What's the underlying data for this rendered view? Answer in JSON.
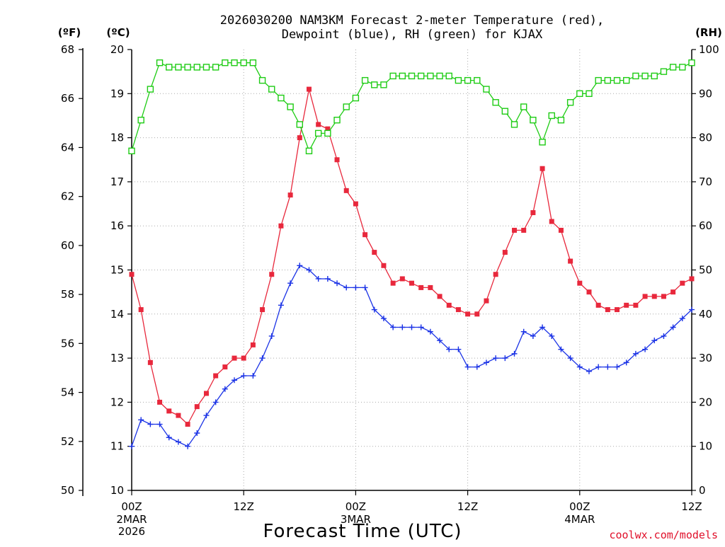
{
  "chart_data": {
    "type": "line",
    "title_line1": "2026030200 NAM3KM Forecast 2-meter Temperature (red),",
    "title_line2": "Dewpoint (blue), RH (green) for KJAX",
    "xlabel": "Forecast Time (UTC)",
    "credit": "coolwx.com/models",
    "x_unit": "hour",
    "xlim": [
      0,
      60
    ],
    "x_ticks": [
      {
        "hour": 0,
        "label": "00Z",
        "day": "2MAR",
        "year": "2026"
      },
      {
        "hour": 12,
        "label": "12Z",
        "day": "",
        "year": ""
      },
      {
        "hour": 24,
        "label": "00Z",
        "day": "3MAR",
        "year": ""
      },
      {
        "hour": 36,
        "label": "12Z",
        "day": "",
        "year": ""
      },
      {
        "hour": 48,
        "label": "00Z",
        "day": "4MAR",
        "year": ""
      },
      {
        "hour": 60,
        "label": "12Z",
        "day": "",
        "year": ""
      }
    ],
    "axes": {
      "fahrenheit": {
        "unit_label": "(ºF)",
        "ticks": [
          "50",
          "52",
          "54",
          "56",
          "58",
          "60",
          "62",
          "64",
          "66",
          "68"
        ]
      },
      "celsius": {
        "unit_label": "(ºC)",
        "ylim": [
          10,
          20
        ],
        "ticks": [
          "10",
          "11",
          "12",
          "13",
          "14",
          "15",
          "16",
          "17",
          "18",
          "19",
          "20"
        ]
      },
      "rh": {
        "unit_label": "(RH)",
        "ylim": [
          0,
          100
        ],
        "ticks": [
          "0",
          "10",
          "20",
          "30",
          "40",
          "50",
          "60",
          "70",
          "80",
          "90",
          "100"
        ]
      }
    },
    "colors": {
      "temperature": "#e8283c",
      "dewpoint": "#1a32e6",
      "rh": "#1ecc14"
    },
    "series": [
      {
        "name": "Temperature",
        "axis": "celsius",
        "marker": "filled-square",
        "values": [
          14.9,
          14.1,
          12.9,
          12.0,
          11.8,
          11.7,
          11.5,
          11.9,
          12.2,
          12.6,
          12.8,
          13.0,
          13.0,
          13.3,
          14.1,
          14.9,
          16.0,
          16.7,
          18.0,
          19.1,
          18.3,
          18.2,
          17.5,
          16.8,
          16.5,
          15.8,
          15.4,
          15.1,
          14.7,
          14.8,
          14.7,
          14.6,
          14.6,
          14.4,
          14.2,
          14.1,
          14.0,
          14.0,
          14.3,
          14.9,
          15.4,
          15.9,
          15.9,
          16.3,
          17.3,
          16.1,
          15.9,
          15.2,
          14.7,
          14.5,
          14.2,
          14.1,
          14.1,
          14.2,
          14.2,
          14.4,
          14.4,
          14.4,
          14.5,
          14.7,
          14.8
        ]
      },
      {
        "name": "Dewpoint",
        "axis": "celsius",
        "marker": "plus",
        "values": [
          11.0,
          11.6,
          11.5,
          11.5,
          11.2,
          11.1,
          11.0,
          11.3,
          11.7,
          12.0,
          12.3,
          12.5,
          12.6,
          12.6,
          13.0,
          13.5,
          14.2,
          14.7,
          15.1,
          15.0,
          14.8,
          14.8,
          14.7,
          14.6,
          14.6,
          14.6,
          14.1,
          13.9,
          13.7,
          13.7,
          13.7,
          13.7,
          13.6,
          13.4,
          13.2,
          13.2,
          12.8,
          12.8,
          12.9,
          13.0,
          13.0,
          13.1,
          13.6,
          13.5,
          13.7,
          13.5,
          13.2,
          13.0,
          12.8,
          12.7,
          12.8,
          12.8,
          12.8,
          12.9,
          13.1,
          13.2,
          13.4,
          13.5,
          13.7,
          13.9,
          14.1
        ]
      },
      {
        "name": "RH",
        "axis": "rh",
        "marker": "open-square",
        "values": [
          77,
          84,
          91,
          97,
          96,
          96,
          96,
          96,
          96,
          96,
          97,
          97,
          97,
          97,
          93,
          91,
          89,
          87,
          83,
          77,
          81,
          81,
          84,
          87,
          89,
          93,
          92,
          92,
          94,
          94,
          94,
          94,
          94,
          94,
          94,
          93,
          93,
          93,
          91,
          88,
          86,
          83,
          87,
          84,
          79,
          85,
          84,
          88,
          90,
          90,
          93,
          93,
          93,
          93,
          94,
          94,
          94,
          95,
          96,
          96,
          97
        ]
      }
    ]
  }
}
